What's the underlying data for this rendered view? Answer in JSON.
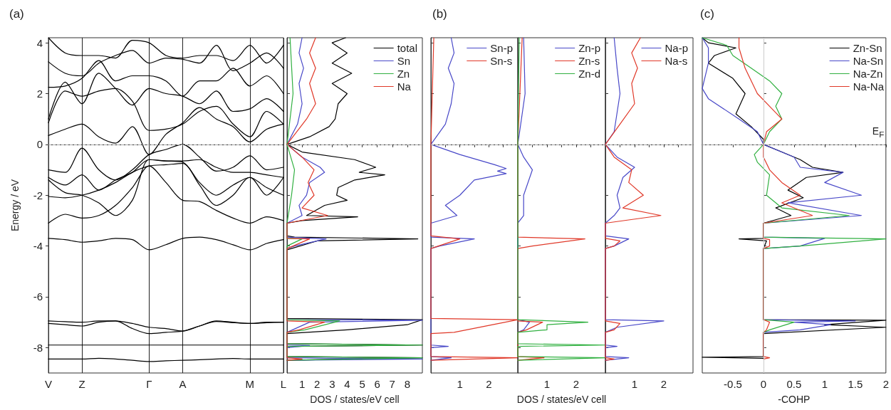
{
  "chart_data": [
    {
      "type": "line",
      "title": "(a)",
      "ylabel": "Energy / eV",
      "categories": [
        "V",
        null,
        "Z",
        null,
        null,
        null,
        "Γ",
        null,
        "A",
        null,
        null,
        null,
        "M",
        null,
        "L"
      ],
      "ylim": [
        -9,
        4.2
      ],
      "yticks": [
        -8,
        -6,
        -4,
        -2,
        0,
        2,
        4
      ],
      "grid": "x",
      "ref_lines": [
        {
          "axis": "y",
          "value": 0,
          "color": "#aaaaaa",
          "line_style": "dashed"
        }
      ],
      "series": [
        {
          "color": "#000000",
          "values": [
            -8.45,
            -8.45,
            -8.45,
            -8.42,
            -8.45,
            -8.5,
            -8.55,
            -8.52,
            -8.5,
            -8.48,
            -8.45,
            -8.43,
            -8.45,
            -8.45,
            -8.45
          ]
        },
        {
          "color": "#000000",
          "values": [
            -7.9,
            -7.9,
            -7.9,
            -7.9,
            -7.9,
            -7.9,
            -7.9,
            -7.9,
            -7.9,
            -7.9,
            -7.9,
            -7.9,
            -7.9,
            -7.9,
            -7.9
          ]
        },
        {
          "color": "#000000",
          "values": [
            -6.95,
            -6.98,
            -7.0,
            -6.95,
            -6.95,
            -7.05,
            -7.2,
            -7.25,
            -7.35,
            -7.15,
            -6.95,
            -7.0,
            -7.05,
            -7.0,
            -7.0
          ]
        },
        {
          "color": "#000000",
          "values": [
            -7.05,
            -7.1,
            -7.15,
            -7.0,
            -6.95,
            -7.25,
            -7.45,
            -7.4,
            -7.35,
            -7.15,
            -6.97,
            -7.02,
            -7.05,
            -7.02,
            -7.0
          ]
        },
        {
          "color": "#000000",
          "values": [
            -3.7,
            -3.75,
            -3.85,
            -3.8,
            -3.7,
            -3.75,
            -4.15,
            -3.95,
            -3.7,
            -3.65,
            -3.75,
            -3.95,
            -4.15,
            -3.9,
            -3.75
          ]
        },
        {
          "color": "#000000",
          "values": [
            -3.1,
            -2.75,
            -2.9,
            -2.8,
            -2.4,
            -1.7,
            -0.85,
            -1.5,
            -2.2,
            -2.25,
            -2.6,
            -2.9,
            -3.1,
            -2.85,
            -3.0
          ]
        },
        {
          "color": "#000000",
          "values": [
            -2.05,
            -2.1,
            -2.0,
            -1.8,
            -1.5,
            -1.1,
            -0.85,
            -0.8,
            -0.75,
            -1.6,
            -2.4,
            -2.0,
            -1.3,
            -1.7,
            -2.0
          ]
        },
        {
          "color": "#000000",
          "values": [
            -1.4,
            -1.9,
            -2.0,
            -2.3,
            -2.8,
            -2.2,
            -0.6,
            -0.65,
            -0.7,
            -1.5,
            -2.0,
            -1.6,
            -1.3,
            -2.0,
            -1.3
          ]
        },
        {
          "color": "#000000",
          "values": [
            -1.3,
            -1.6,
            -1.2,
            -1.8,
            -1.4,
            -1.1,
            -0.6,
            -0.65,
            -0.65,
            -0.6,
            -0.9,
            -1.1,
            -1.1,
            -1.2,
            -1.3
          ]
        },
        {
          "color": "#000000",
          "values": [
            -1.0,
            -1.1,
            -0.15,
            -1.0,
            -1.4,
            -1.0,
            -0.4,
            -0.2,
            0.0,
            -0.5,
            -1.05,
            -0.9,
            -0.45,
            -1.0,
            -0.9
          ]
        },
        {
          "color": "#000000",
          "values": [
            0.35,
            0.6,
            0.8,
            0.3,
            0.05,
            0.7,
            -0.4,
            0.4,
            0.85,
            1.45,
            1.0,
            0.7,
            0.1,
            0.6,
            0.8
          ]
        },
        {
          "color": "#000000",
          "values": [
            0.85,
            2.1,
            1.9,
            2.1,
            2.2,
            1.7,
            0.55,
            0.6,
            0.8,
            1.3,
            1.5,
            0.8,
            0.3,
            1.3,
            0.8
          ]
        },
        {
          "color": "#000000",
          "values": [
            1.0,
            2.45,
            1.6,
            2.8,
            2.2,
            1.55,
            2.2,
            2.0,
            1.9,
            1.6,
            2.1,
            1.3,
            1.4,
            1.8,
            1.3
          ]
        },
        {
          "color": "#000000",
          "values": [
            2.25,
            2.3,
            2.6,
            3.3,
            2.5,
            2.7,
            2.7,
            2.5,
            1.9,
            2.5,
            2.5,
            3.0,
            2.3,
            2.7,
            2.0
          ]
        },
        {
          "color": "#000000",
          "values": [
            3.25,
            2.8,
            2.7,
            3.2,
            3.5,
            3.7,
            3.2,
            3.4,
            3.35,
            3.2,
            3.9,
            2.9,
            3.2,
            3.6,
            3.0
          ]
        },
        {
          "color": "#000000",
          "values": [
            4.2,
            3.6,
            3.5,
            3.5,
            3.4,
            4.1,
            4.0,
            3.5,
            3.4,
            3.5,
            3.5,
            3.3,
            3.9,
            3.2,
            3.9
          ]
        }
      ]
    },
    {
      "type": "line",
      "orientation": "horizontal",
      "xlabel": "DOS / states/eV cell",
      "xlim": [
        0,
        9
      ],
      "xticks": [
        1,
        2,
        3,
        4,
        5,
        6,
        7,
        8
      ],
      "ylim": [
        -9,
        4.2
      ],
      "yticks": [
        -8,
        -6,
        -4,
        -2,
        0,
        2,
        4
      ],
      "tick_labels": "x",
      "legend": "top right",
      "ref_lines": [
        {
          "axis": "y",
          "value": 0,
          "color": "#aaaaaa",
          "line_style": "dashed"
        }
      ],
      "series": [
        {
          "name": "total",
          "color": "#000000",
          "x": [
            4.2,
            4.0,
            3.6,
            3.2,
            2.8,
            2.4,
            2.0,
            1.6,
            1.0,
            0.7,
            0.3,
            0,
            -0.3,
            -0.6,
            -0.9,
            -1.1,
            -1.2,
            -1.4,
            -1.7,
            -2.0,
            -2.2,
            -2.4,
            -2.8,
            -2.85,
            -3.0,
            -3.1,
            -3.6,
            -3.65,
            -3.72,
            -3.8,
            -4.1,
            -4.15,
            -6.85,
            -6.9,
            -7.1,
            -7.3,
            -7.45,
            -7.85,
            -7.9,
            -7.95,
            -8.35,
            -8.4,
            -8.5
          ],
          "values": [
            3.9,
            3.0,
            4.0,
            3.0,
            4.3,
            3.0,
            4.0,
            3.4,
            3.2,
            2.8,
            1.5,
            0,
            1.0,
            4.5,
            5.9,
            4.8,
            6.5,
            4.5,
            3.4,
            3.3,
            4.0,
            2.5,
            1.3,
            4.7,
            1.0,
            0,
            0,
            0.5,
            8.7,
            2.0,
            0.3,
            0,
            0,
            9.0,
            8.0,
            4.0,
            0,
            0,
            9.0,
            0,
            0,
            9.0,
            0
          ]
        },
        {
          "name": "Sn",
          "color": "#4848c8",
          "x": [
            4.2,
            3.6,
            3.0,
            2.4,
            1.6,
            0.8,
            0,
            -0.5,
            -0.9,
            -1.1,
            -1.5,
            -2.0,
            -2.4,
            -2.8,
            -3.1,
            -3.65,
            -3.72,
            -4.0,
            -4.1,
            -6.9,
            -6.92,
            -7.0,
            -7.4,
            -7.9,
            -7.92,
            -8.0,
            -8.4,
            -8.45,
            -8.5
          ],
          "values": [
            1.0,
            0.8,
            1.1,
            0.8,
            1.0,
            0.7,
            0,
            1.0,
            2.2,
            2.5,
            1.5,
            1.3,
            0.8,
            1.0,
            0,
            0,
            2.6,
            0.5,
            0,
            0,
            9,
            1.5,
            0,
            0,
            1.5,
            0,
            0,
            9,
            0
          ]
        },
        {
          "name": "Zn",
          "color": "#30b040",
          "x": [
            4.2,
            2.0,
            0,
            -1.0,
            -2.0,
            -3.1,
            -3.7,
            -3.72,
            -4.0,
            -6.9,
            -6.95,
            -7.3,
            -7.4,
            -7.85,
            -7.9,
            -7.95,
            -8.35,
            -8.4,
            -8.5
          ],
          "values": [
            0.2,
            0.4,
            0,
            0.5,
            0.3,
            0,
            0,
            1.0,
            0,
            0,
            3.5,
            1.2,
            0,
            0,
            9,
            0,
            0,
            9,
            0
          ]
        },
        {
          "name": "Na",
          "color": "#e03828",
          "x": [
            4.2,
            3.6,
            3.0,
            2.4,
            1.6,
            1.0,
            0,
            -0.5,
            -1.0,
            -1.5,
            -2.0,
            -2.5,
            -2.8,
            -3.1,
            -3.7,
            -3.72,
            -4.0,
            -4.1,
            -6.95,
            -7.0,
            -7.3,
            -7.4,
            -8.4,
            -8.45,
            -8.5
          ],
          "values": [
            1.9,
            1.5,
            1.9,
            1.5,
            1.9,
            1.3,
            0,
            1.0,
            1.8,
            1.4,
            1.8,
            1.0,
            2.7,
            0,
            0,
            1.5,
            0.4,
            0,
            0,
            2.5,
            0.8,
            0,
            0,
            1.0,
            0
          ]
        }
      ]
    },
    {
      "type": "line",
      "orientation": "horizontal",
      "title": "(b)",
      "xlim": [
        0,
        3
      ],
      "xticks": [
        {
          "value": 0.5,
          "label": null
        },
        1,
        {
          "value": 1.5,
          "label": null
        },
        2,
        {
          "value": 2.5,
          "label": null
        }
      ],
      "ylim": [
        -9,
        4.2
      ],
      "yticks": [
        -8,
        -6,
        -4,
        -2,
        0,
        2,
        4
      ],
      "tick_labels": "x",
      "legend": "top right",
      "ref_lines": [
        {
          "axis": "y",
          "value": 0,
          "color": "#aaaaaa",
          "line_style": "dashed"
        }
      ],
      "series": [
        {
          "name": "Sn-p",
          "color": "#4848c8",
          "x": [
            4.2,
            3.6,
            3.0,
            2.4,
            1.6,
            0.8,
            0,
            -0.4,
            -0.8,
            -0.95,
            -1.05,
            -1.15,
            -1.4,
            -2.0,
            -2.4,
            -2.8,
            -3.1,
            -3.65,
            -3.72,
            -4.0,
            -4.1,
            -7.9,
            -7.95,
            -8.0,
            -8.35,
            -8.4,
            -8.5
          ],
          "values": [
            0.7,
            0.8,
            0.6,
            0.8,
            0.7,
            0.5,
            0,
            1.0,
            2.2,
            2.6,
            2.3,
            2.6,
            1.5,
            1.0,
            0.5,
            0.9,
            0,
            0,
            1.5,
            0.3,
            0,
            0,
            0.6,
            0,
            0,
            0.7,
            0
          ]
        },
        {
          "name": "Sn-s",
          "color": "#e03828",
          "x": [
            4.2,
            0,
            -3.6,
            -3.72,
            -4.1,
            -6.85,
            -6.9,
            -7.4,
            -7.45,
            -8.35,
            -8.4,
            -8.5
          ],
          "values": [
            0.1,
            0,
            0,
            1.0,
            0,
            0,
            3.0,
            0.8,
            0,
            0,
            3.0,
            0
          ]
        }
      ]
    },
    {
      "type": "line",
      "orientation": "horizontal",
      "xlabel": "DOS / states/eV cell",
      "xlim": [
        0,
        3
      ],
      "xticks": [
        {
          "value": 0.5,
          "label": null
        },
        1,
        {
          "value": 1.5,
          "label": null
        },
        2,
        {
          "value": 2.5,
          "label": null
        }
      ],
      "ylim": [
        -9,
        4.2
      ],
      "yticks": [
        -8,
        -6,
        -4,
        -2,
        0,
        2,
        4
      ],
      "tick_labels": "x",
      "legend": "top right",
      "ref_lines": [
        {
          "axis": "y",
          "value": 0,
          "color": "#aaaaaa",
          "line_style": "dashed"
        }
      ],
      "series": [
        {
          "name": "Zn-p",
          "color": "#4848c8",
          "x": [
            4.2,
            2.0,
            0,
            -0.5,
            -1.0,
            -2.0,
            -2.8,
            -3.1,
            -6.9,
            -7.0,
            -7.3,
            -7.4
          ],
          "values": [
            0.2,
            0.25,
            0,
            0.2,
            0.5,
            0.2,
            0.2,
            0,
            0,
            0.4,
            0.2,
            0
          ]
        },
        {
          "name": "Zn-s",
          "color": "#e03828",
          "x": [
            4.2,
            0,
            -3.65,
            -3.72,
            -4.0,
            -4.1,
            -6.95,
            -7.0,
            -7.3,
            -7.4,
            -8.35,
            -8.4,
            -8.5
          ],
          "values": [
            0.15,
            0,
            0,
            2.3,
            0.5,
            0,
            0,
            0.85,
            0.3,
            0,
            0,
            0.9,
            0
          ]
        },
        {
          "name": "Zn-d",
          "color": "#30b040",
          "x": [
            4.2,
            0,
            -6.9,
            -7.0,
            -7.1,
            -7.3,
            -7.4,
            -7.85,
            -7.9,
            -7.95,
            -8.35,
            -8.4,
            -8.5
          ],
          "values": [
            0.05,
            0,
            0,
            2.4,
            1.0,
            1.0,
            0,
            0,
            3,
            0,
            0,
            3,
            0
          ]
        }
      ]
    },
    {
      "type": "line",
      "orientation": "horizontal",
      "xlim": [
        0,
        3
      ],
      "xticks": [
        {
          "value": 0.5,
          "label": null
        },
        1,
        {
          "value": 1.5,
          "label": null
        },
        2,
        {
          "value": 2.5,
          "label": null
        }
      ],
      "ylim": [
        -9,
        4.2
      ],
      "yticks": [
        -8,
        -6,
        -4,
        -2,
        0,
        2,
        4
      ],
      "tick_labels": "x",
      "legend": "top right",
      "ref_lines": [
        {
          "axis": "y",
          "value": 0,
          "color": "#aaaaaa",
          "line_style": "dashed"
        }
      ],
      "series": [
        {
          "name": "Na-p",
          "color": "#4848c8",
          "x": [
            4.2,
            3.0,
            2.0,
            0.5,
            0,
            -0.5,
            -0.9,
            -1.3,
            -2.0,
            -2.5,
            -2.8,
            -3.1,
            -3.6,
            -3.72,
            -4.0,
            -4.1,
            -6.9,
            -6.95,
            -7.2,
            -7.4,
            -7.9,
            -7.95,
            -8.0,
            -8.35,
            -8.4,
            -8.5
          ],
          "values": [
            0.3,
            0.4,
            0.5,
            0.3,
            0,
            0.4,
            1.0,
            0.6,
            0.4,
            0.5,
            0.3,
            0,
            0,
            0.8,
            0.3,
            0,
            0,
            2.0,
            0.4,
            0,
            0,
            0.4,
            0,
            0,
            0.8,
            0
          ]
        },
        {
          "name": "Na-s",
          "color": "#e03828",
          "x": [
            4.2,
            3.6,
            3.0,
            2.4,
            1.6,
            0.8,
            0,
            -0.5,
            -1.0,
            -1.5,
            -2.0,
            -2.5,
            -2.8,
            -3.1,
            -3.7,
            -3.8,
            -4.0,
            -4.1,
            -6.95,
            -7.05,
            -7.3,
            -7.4,
            -8.4,
            -8.45,
            -8.5
          ],
          "values": [
            1.2,
            0.9,
            1.1,
            0.9,
            1.0,
            0.5,
            0,
            0.3,
            0.9,
            0.8,
            1.3,
            0.6,
            1.9,
            0,
            0,
            0.5,
            0.3,
            0,
            0,
            0.5,
            0.3,
            0,
            0,
            0.3,
            0
          ]
        }
      ]
    },
    {
      "type": "line",
      "orientation": "horizontal",
      "title": "(c)",
      "xlabel": "-COHP",
      "xlim": [
        -1,
        2
      ],
      "xticks": [
        -0.5,
        0,
        0.5,
        1,
        1.5,
        2
      ],
      "ylim": [
        -9,
        4.2
      ],
      "yticks": [
        -8,
        -6,
        -4,
        -2,
        0,
        2,
        4
      ],
      "tick_labels": "x",
      "legend": "top right",
      "ref_lines": [
        {
          "axis": "y",
          "value": 0,
          "color": "#aaaaaa",
          "line_style": "dashed",
          "label": "E$_{F}$"
        },
        {
          "axis": "x",
          "value": 0,
          "color": "#cccccc",
          "line_style": "solid"
        }
      ],
      "series": [
        {
          "name": "Zn-Sn",
          "color": "#000000",
          "x": [
            4.2,
            4.0,
            3.8,
            3.5,
            3.2,
            2.6,
            2.0,
            1.2,
            0.7,
            0.2,
            0,
            -0.3,
            -0.6,
            -0.9,
            -1.1,
            -1.3,
            -1.8,
            -2.1,
            -2.5,
            -2.8,
            -3.1,
            -3.7,
            -3.72,
            -3.8,
            -4.1,
            -6.9,
            -6.92,
            -7.1,
            -7.2,
            -7.45,
            -8.35,
            -8.38,
            -8.42
          ],
          "values": [
            -1.0,
            -0.9,
            -0.45,
            -0.8,
            -0.9,
            -0.5,
            -0.3,
            -0.45,
            -0.2,
            0.0,
            0,
            0.3,
            0.6,
            0.8,
            1.3,
            0.7,
            0.4,
            0.65,
            0.2,
            0.45,
            0,
            0,
            -0.4,
            0.05,
            0,
            0,
            2.0,
            1.0,
            2.0,
            0,
            0,
            -1.0,
            0
          ]
        },
        {
          "name": "Na-Sn",
          "color": "#4848c8",
          "x": [
            4.2,
            3.8,
            3.2,
            2.2,
            1.8,
            1.0,
            0.5,
            0,
            -0.5,
            -0.9,
            -1.1,
            -1.5,
            -2.0,
            -2.3,
            -2.8,
            -3.1,
            -3.65,
            -3.7,
            -4.0,
            -4.1,
            -6.9,
            -6.95,
            -7.0,
            -7.1,
            -7.3,
            -7.4
          ],
          "values": [
            -1.0,
            -0.9,
            -0.9,
            -1.0,
            -0.9,
            -0.4,
            -0.1,
            0,
            0.5,
            0.6,
            1.3,
            1.0,
            1.6,
            0.4,
            1.6,
            0,
            0,
            1.0,
            0.6,
            0,
            0,
            1.5,
            0.5,
            1.1,
            0.6,
            0
          ]
        },
        {
          "name": "Na-Zn",
          "color": "#30b040",
          "x": [
            4.2,
            3.9,
            3.5,
            3.0,
            2.5,
            2.0,
            1.5,
            1.0,
            0.5,
            0,
            -0.4,
            -0.7,
            -1.2,
            -2.0,
            -2.5,
            -2.8,
            -3.1,
            -3.65,
            -3.72,
            -4.0,
            -4.1,
            -6.9,
            -7.0,
            -7.3,
            -7.4
          ],
          "values": [
            -1.0,
            -0.6,
            -0.5,
            -0.2,
            0.1,
            0.3,
            0.2,
            0.3,
            0.1,
            0,
            -0.15,
            -0.1,
            0.1,
            0.05,
            0.3,
            1.4,
            0,
            0,
            2.0,
            0.6,
            0,
            0,
            0.5,
            0.1,
            0
          ]
        },
        {
          "name": "Na-Na",
          "color": "#e03828",
          "x": [
            4.2,
            3.8,
            3.0,
            2.0,
            1.5,
            1.0,
            0.5,
            0,
            -0.5,
            -1.0,
            -1.5,
            -2.0,
            -2.3,
            -2.8,
            -3.1,
            -3.7,
            -3.75,
            -4.0,
            -4.1,
            -6.9,
            -7.0,
            -7.3,
            -7.4,
            -8.35,
            -8.4,
            -8.45
          ],
          "values": [
            -0.4,
            -0.4,
            -0.3,
            -0.1,
            0.1,
            0.3,
            0.05,
            0,
            0.0,
            0.1,
            0.3,
            0.6,
            0.3,
            0.8,
            0,
            0,
            0.1,
            0.1,
            0,
            0,
            0.1,
            0.05,
            0,
            0,
            0.1,
            0
          ]
        }
      ]
    }
  ]
}
